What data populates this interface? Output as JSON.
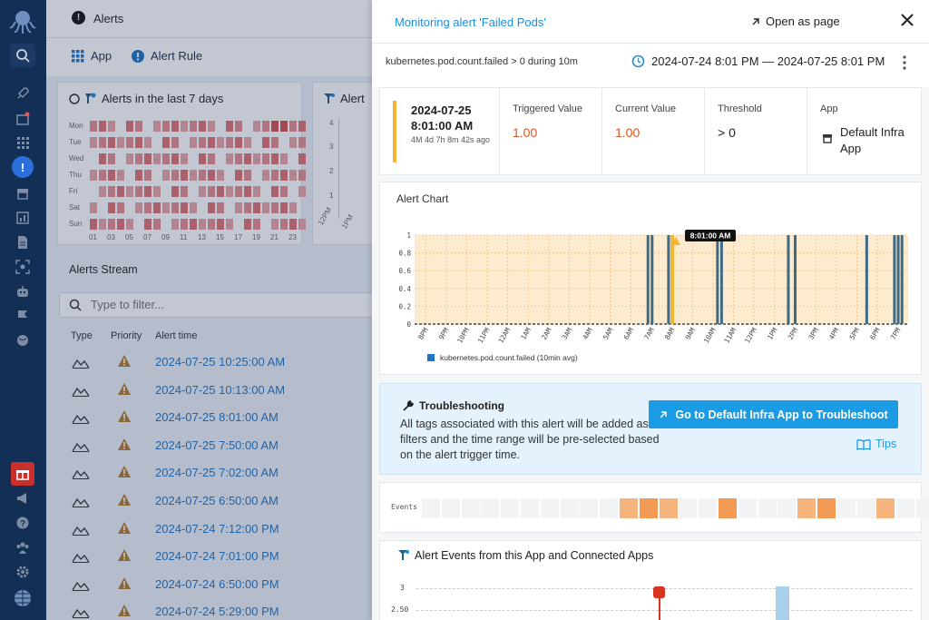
{
  "nav": {
    "items": [
      "search-icon",
      "rocket-icon",
      "inbox-icon",
      "grid-icon",
      "alerts-icon",
      "archive-icon",
      "bar-chart-icon",
      "document-icon",
      "scan-icon",
      "bot-icon",
      "flag-icon",
      "globe-icon"
    ],
    "bottom_items": [
      "gift-icon",
      "megaphone-icon",
      "help-icon",
      "team-icon",
      "settings-icon",
      "avatar"
    ]
  },
  "background": {
    "page_title": "Alerts",
    "tabs": {
      "app": "App",
      "alert_rule": "Alert Rule"
    },
    "heatmap": {
      "title": "Alerts in the last 7 days",
      "days": [
        "Mon",
        "Tue",
        "Wed",
        "Thu",
        "Fri",
        "Sat",
        "Sun"
      ],
      "hours": [
        "01",
        "03",
        "05",
        "07",
        "09",
        "11",
        "13",
        "15",
        "17",
        "19",
        "21",
        "23"
      ]
    },
    "alert_count_chart": {
      "title": "Alert",
      "y_ticks": [
        "4",
        "3",
        "2",
        "1"
      ],
      "x_ticks": [
        "12PM",
        "1PM"
      ]
    },
    "stream": {
      "title": "Alerts Stream",
      "filter_placeholder": "Type to filter...",
      "columns": {
        "type": "Type",
        "priority": "Priority",
        "alert_time": "Alert time"
      },
      "rows": [
        "2024-07-25 10:25:00 AM",
        "2024-07-25 10:13:00 AM",
        "2024-07-25 8:01:00 AM",
        "2024-07-25 7:50:00 AM",
        "2024-07-25 7:02:00 AM",
        "2024-07-25 6:50:00 AM",
        "2024-07-24 7:12:00 PM",
        "2024-07-24 7:01:00 PM",
        "2024-07-24 6:50:00 PM",
        "2024-07-24 5:29:00 PM"
      ]
    }
  },
  "drawer": {
    "title": "Monitoring alert 'Failed Pods'",
    "open_as_page": "Open as page",
    "query": "kubernetes.pod.count.failed > 0 during 10m",
    "time_range": "2024-07-24 8:01 PM — 2024-07-25 8:01 PM",
    "summary": {
      "date": "2024-07-25",
      "time": "8:01:00 AM",
      "ago": "4M 4d 7h 8m 42s ago",
      "triggered_label": "Triggered Value",
      "triggered_value": "1.00",
      "current_label": "Current Value",
      "current_value": "1.00",
      "threshold_label": "Threshold",
      "threshold_value": "> 0",
      "app_label": "App",
      "app_line1": "Default Infra",
      "app_line2": "App"
    },
    "alert_chart": {
      "title": "Alert Chart",
      "marker_label": "8:01:00 AM",
      "legend": "kubernetes.pod.count.failed (10min avg)"
    },
    "troubleshooting": {
      "title": "Troubleshooting",
      "body": "All tags associated with this alert will be added as filters and the time range will be pre-selected based on the alert trigger time.",
      "button": "Go to Default Infra App to Troubleshoot",
      "tips": "Tips"
    },
    "events": {
      "label": "Events",
      "cells": [
        0,
        0,
        0,
        0,
        0,
        0,
        0,
        0,
        0,
        0,
        2,
        3,
        2,
        0,
        0,
        3,
        0,
        0,
        0,
        2,
        3,
        0,
        0,
        2,
        0,
        0,
        2,
        0,
        0,
        0,
        0,
        0,
        0,
        0,
        0
      ]
    },
    "app_events": {
      "title": "Alert Events from this App and Connected Apps",
      "y_ticks": [
        "3",
        "2.50"
      ]
    }
  },
  "colors": {
    "accent": "#1b9be3",
    "link": "#1f8ed8",
    "warning": "#f2b632",
    "value_orange": "#d9531e",
    "nav_bg": "#142f56",
    "series": "#3d6a85",
    "alert_fill": "#fdebd0"
  },
  "chart_data": {
    "type": "bar",
    "title": "Alert Chart",
    "series": [
      {
        "name": "kubernetes.pod.count.failed (10min avg)",
        "points": [
          {
            "x": "6:50 AM",
            "y": 1
          },
          {
            "x": "7:02 AM",
            "y": 1
          },
          {
            "x": "7:50 AM",
            "y": 1
          },
          {
            "x": "8:01 AM",
            "y": 1
          },
          {
            "x": "10:13 AM",
            "y": 1
          },
          {
            "x": "10:25 AM",
            "y": 1
          },
          {
            "x": "1:40 PM",
            "y": 1
          },
          {
            "x": "2:00 PM",
            "y": 1
          },
          {
            "x": "5:29 PM",
            "y": 1
          },
          {
            "x": "6:50 PM",
            "y": 1
          },
          {
            "x": "7:01 PM",
            "y": 1
          },
          {
            "x": "7:12 PM",
            "y": 1
          }
        ]
      }
    ],
    "x_ticks": [
      "8PM",
      "9PM",
      "10PM",
      "11PM",
      "12AM",
      "1AM",
      "2AM",
      "3AM",
      "4AM",
      "5AM",
      "6AM",
      "7AM",
      "8AM",
      "9AM",
      "10AM",
      "11AM",
      "12PM",
      "1PM",
      "2PM",
      "3PM",
      "4PM",
      "5PM",
      "6PM",
      "7PM"
    ],
    "y_ticks": [
      "0",
      "0.2",
      "0.4",
      "0.6",
      "0.8",
      "1"
    ],
    "ylim": [
      0,
      1
    ],
    "threshold": 0,
    "highlight_x": "8:01 AM"
  }
}
